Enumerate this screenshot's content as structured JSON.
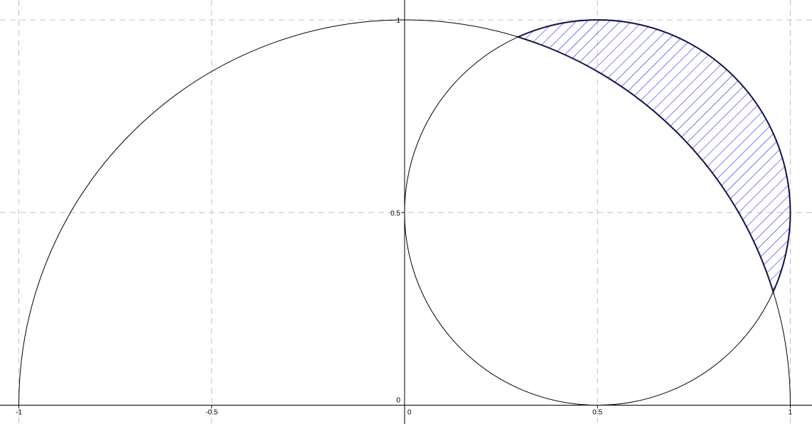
{
  "chart_data": {
    "type": "diagram",
    "xlim": [
      -1.01,
      1.06
    ],
    "ylim": [
      -0.05,
      1.05
    ],
    "grid": true,
    "grid_step": 0.5,
    "x_ticks": [
      "-1",
      "-0.5",
      "0",
      "0.5",
      "1"
    ],
    "y_ticks": [
      "0",
      "0.5",
      "1"
    ],
    "x_tick_values": [
      -1,
      -0.5,
      0,
      0.5,
      1
    ],
    "y_tick_values": [
      0,
      0.5,
      1
    ],
    "circles": [
      {
        "center": [
          0,
          0
        ],
        "radius": 1,
        "color": "#000000"
      },
      {
        "center": [
          0.5,
          0.5
        ],
        "radius": 0.5,
        "color": "#000000"
      }
    ],
    "shaded_region": {
      "description_of": "inside circle 2, outside circle 1",
      "intersections": [
        [
          0.2943,
          0.9557
        ],
        [
          0.9557,
          0.2943
        ]
      ],
      "fill": "hatch",
      "color": "#0000ff",
      "border_color": "#1a1a8c"
    }
  }
}
